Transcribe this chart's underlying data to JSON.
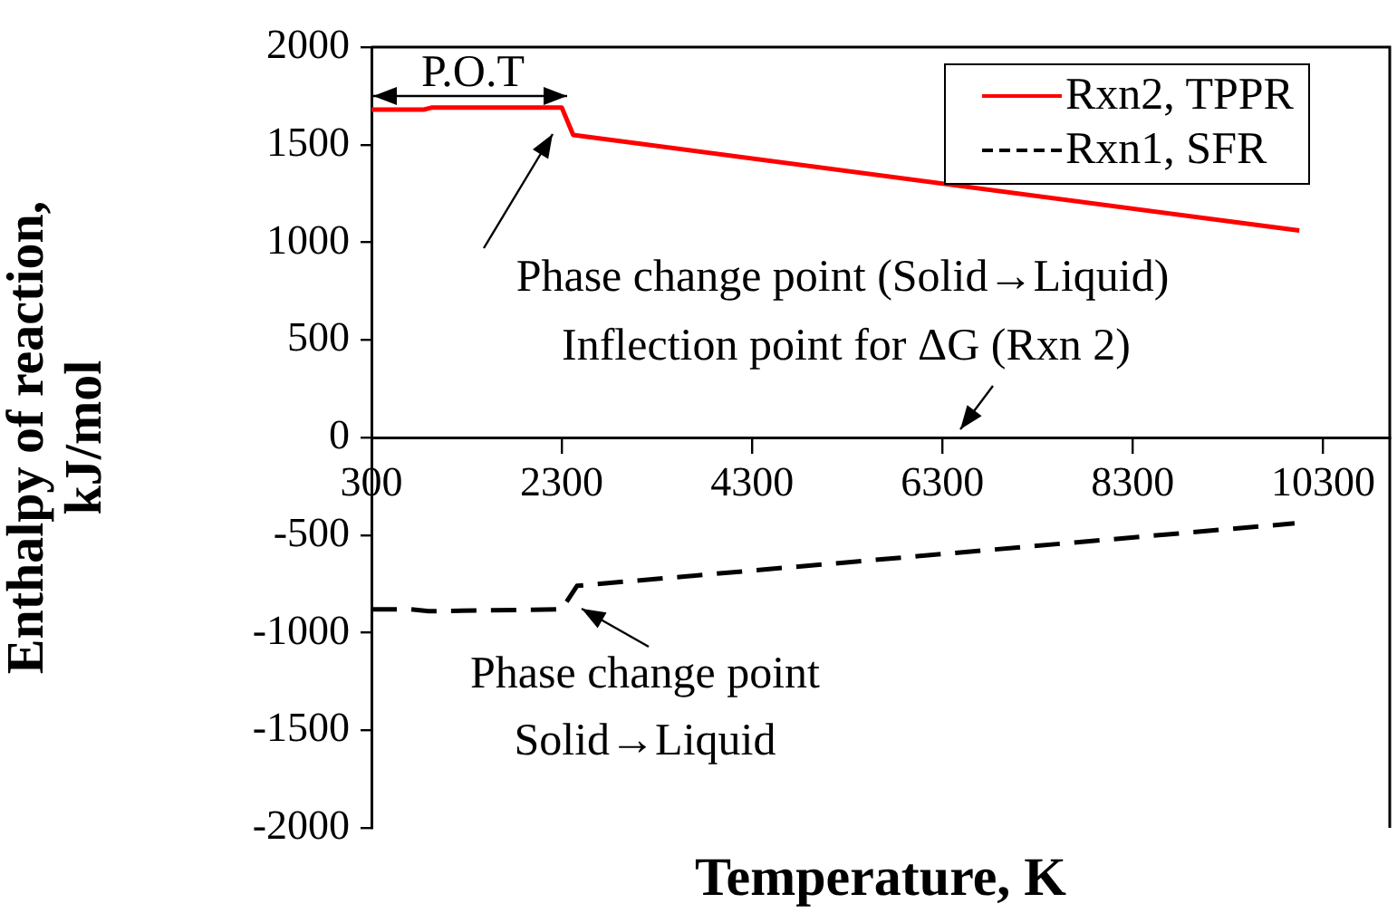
{
  "chart_data": {
    "type": "line",
    "xlabel": "Temperature, K",
    "ylabel": "Enthalpy of reaction, kJ/mol",
    "xlim": [
      300,
      11000
    ],
    "xticks": [
      300,
      2300,
      4300,
      6300,
      8300,
      10300
    ],
    "ylim": [
      -2000,
      2000
    ],
    "yticks": [
      -2000,
      -1500,
      -1000,
      -500,
      0,
      500,
      1000,
      1500,
      2000
    ],
    "grid": false,
    "legend": "top right",
    "marker": "none",
    "series": [
      {
        "name": "Rxn2, TPPR",
        "color": "#ff0000",
        "line_style": "solid",
        "x": [
          300,
          850,
          930,
          2300,
          2420,
          10050
        ],
        "values": [
          1680,
          1680,
          1690,
          1690,
          1550,
          1060
        ]
      },
      {
        "name": "Rxn1, SFR",
        "color": "#000000",
        "line_style": "dashed",
        "x": [
          300,
          700,
          900,
          2300,
          2460,
          10000
        ],
        "values": [
          -880,
          -880,
          -890,
          -880,
          -760,
          -440
        ]
      }
    ],
    "annotations": [
      "P.O.T",
      "Phase change point (Solid→Liquid)",
      "Inflection point for ΔG (Rxn 2)",
      "Phase change point",
      "Solid→Liquid"
    ]
  }
}
